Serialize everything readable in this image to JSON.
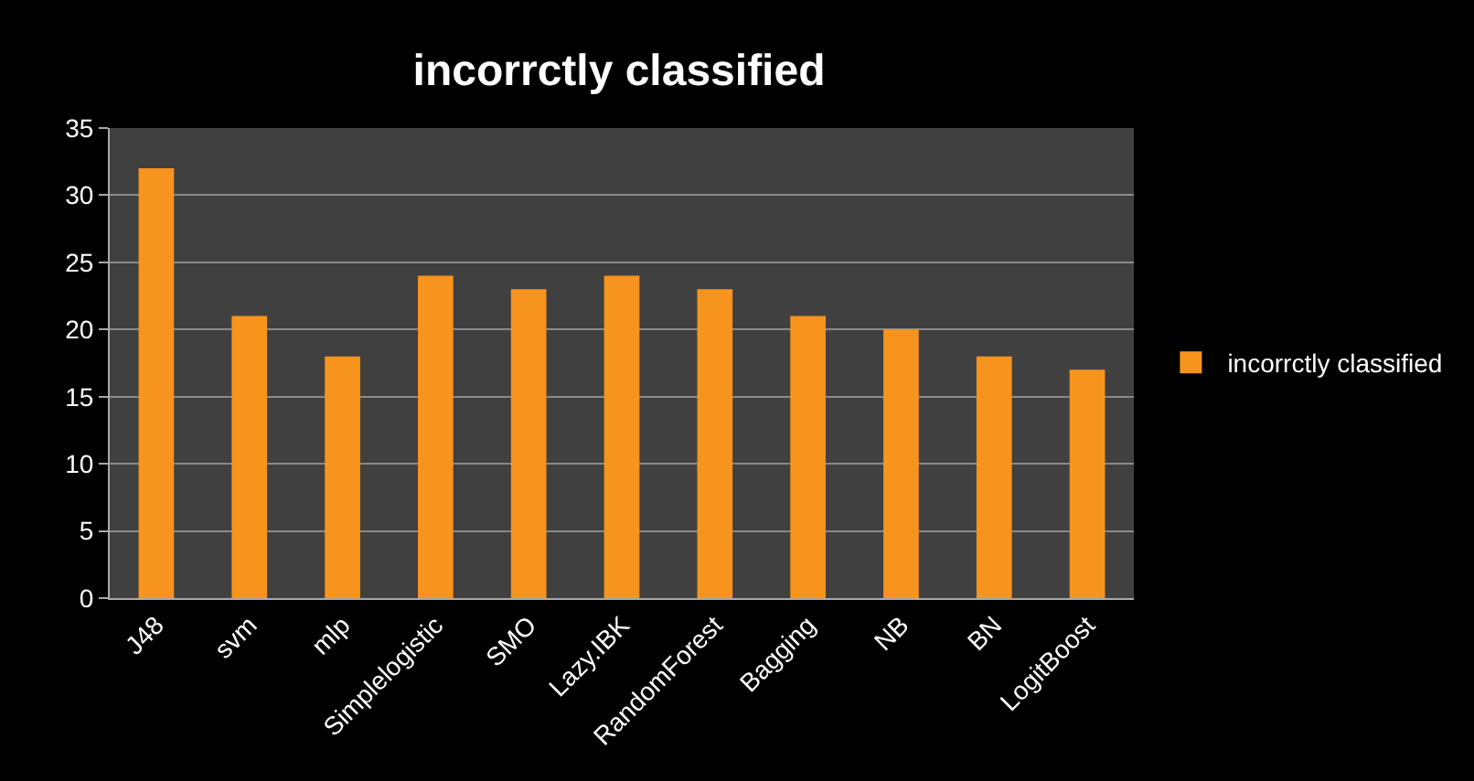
{
  "chart_data": {
    "type": "bar",
    "title": "incorrctly classified",
    "categories": [
      "J48",
      "svm",
      "mlp",
      "Simplelogistic",
      "SMO",
      "Lazy.IBK",
      "RandomForest",
      "Bagging",
      "NB",
      "BN",
      "LogitBoost"
    ],
    "series": [
      {
        "name": "incorrctly classified",
        "color": "#f7941d",
        "values": [
          32,
          21,
          18,
          24,
          23,
          24,
          23,
          21,
          20,
          18,
          17
        ]
      }
    ],
    "ylim": [
      0,
      35
    ],
    "yticks": [
      0,
      5,
      10,
      15,
      20,
      25,
      30,
      35
    ],
    "grid": "y",
    "legend": "right"
  }
}
